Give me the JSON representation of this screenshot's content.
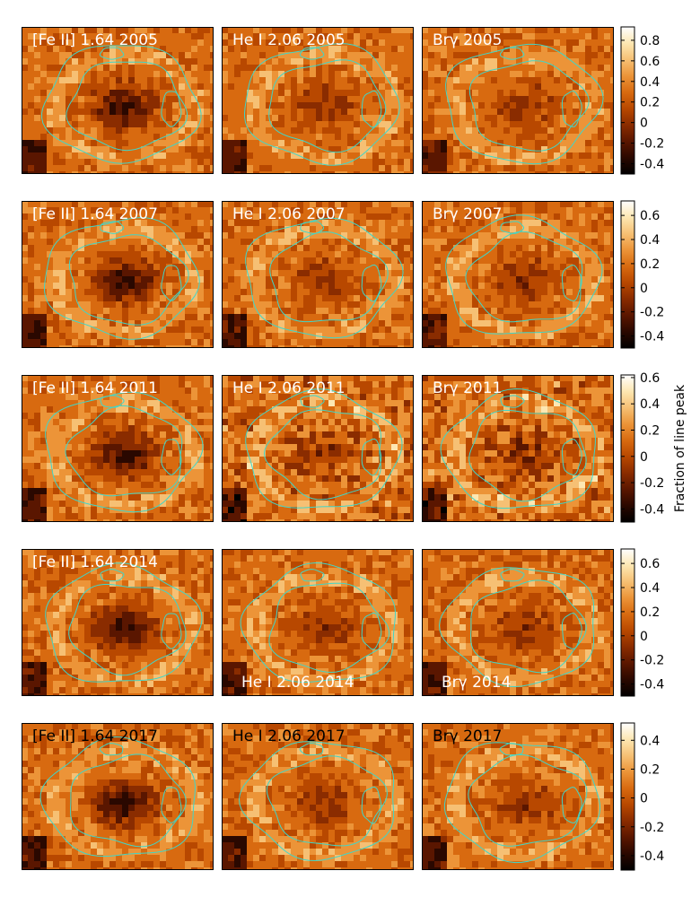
{
  "figure": {
    "ylabel": "Fraction of line peak",
    "colormap": [
      "#000000",
      "#2a0800",
      "#5a1600",
      "#8a2c00",
      "#b84800",
      "#d86a10",
      "#ec9438",
      "#f6c074",
      "#fde7b2",
      "#ffffff"
    ],
    "contour_color": "#40d6c8",
    "rows": [
      {
        "year": "2005",
        "panels": [
          {
            "label": "[Fe II] 1.64 2005",
            "label_color": "#ffffff",
            "label_pos": "top"
          },
          {
            "label": "He I 2.06 2005",
            "label_color": "#ffffff",
            "label_pos": "top"
          },
          {
            "label": "Brγ 2005",
            "label_color": "#ffffff",
            "label_pos": "top"
          }
        ],
        "colorbar": {
          "ticks": [
            "0.8",
            "0.6",
            "0.4",
            "0.2",
            "0",
            "-0.2",
            "-0.4"
          ],
          "tick_values": [
            0.8,
            0.6,
            0.4,
            0.2,
            0,
            -0.2,
            -0.4
          ],
          "range": [
            -0.5,
            0.93
          ]
        }
      },
      {
        "year": "2007",
        "panels": [
          {
            "label": "[Fe II] 1.64 2007",
            "label_color": "#ffffff",
            "label_pos": "top"
          },
          {
            "label": "He I 2.06 2007",
            "label_color": "#ffffff",
            "label_pos": "top"
          },
          {
            "label": "Brγ 2007",
            "label_color": "#ffffff",
            "label_pos": "top"
          }
        ],
        "colorbar": {
          "ticks": [
            "0.6",
            "0.4",
            "0.2",
            "0",
            "-0.2",
            "-0.4"
          ],
          "tick_values": [
            0.6,
            0.4,
            0.2,
            0,
            -0.2,
            -0.4
          ],
          "range": [
            -0.5,
            0.72
          ]
        }
      },
      {
        "year": "2011",
        "panels": [
          {
            "label": "[Fe II] 1.64 2011",
            "label_color": "#ffffff",
            "label_pos": "top"
          },
          {
            "label": "He I 2.06 2011",
            "label_color": "#ffffff",
            "label_pos": "top"
          },
          {
            "label": "Brγ 2011",
            "label_color": "#ffffff",
            "label_pos": "top"
          }
        ],
        "colorbar": {
          "ticks": [
            "0.6",
            "0.4",
            "0.2",
            "0",
            "-0.2",
            "-0.4"
          ],
          "tick_values": [
            0.6,
            0.4,
            0.2,
            0,
            -0.2,
            -0.4
          ],
          "range": [
            -0.5,
            0.62
          ]
        }
      },
      {
        "year": "2014",
        "panels": [
          {
            "label": "[Fe II] 1.64 2014",
            "label_color": "#ffffff",
            "label_pos": "top"
          },
          {
            "label": "He I 2.06 2014",
            "label_color": "#ffffff",
            "label_pos": "bottom"
          },
          {
            "label": "Brγ 2014",
            "label_color": "#ffffff",
            "label_pos": "bottom"
          }
        ],
        "colorbar": {
          "ticks": [
            "0.6",
            "0.4",
            "0.2",
            "0",
            "-0.2",
            "-0.4"
          ],
          "tick_values": [
            0.6,
            0.4,
            0.2,
            0,
            -0.2,
            -0.4
          ],
          "range": [
            -0.5,
            0.72
          ]
        }
      },
      {
        "year": "2017",
        "panels": [
          {
            "label": "[Fe II] 1.64 2017",
            "label_color": "#000000",
            "label_pos": "top"
          },
          {
            "label": "He I 2.06 2017",
            "label_color": "#000000",
            "label_pos": "top"
          },
          {
            "label": "Brγ 2017",
            "label_color": "#000000",
            "label_pos": "top"
          }
        ],
        "colorbar": {
          "ticks": [
            "0.4",
            "0.2",
            "0",
            "-0.2",
            "-0.4"
          ],
          "tick_values": [
            0.4,
            0.2,
            0,
            -0.2,
            -0.4
          ],
          "range": [
            -0.5,
            0.52
          ]
        }
      }
    ]
  }
}
